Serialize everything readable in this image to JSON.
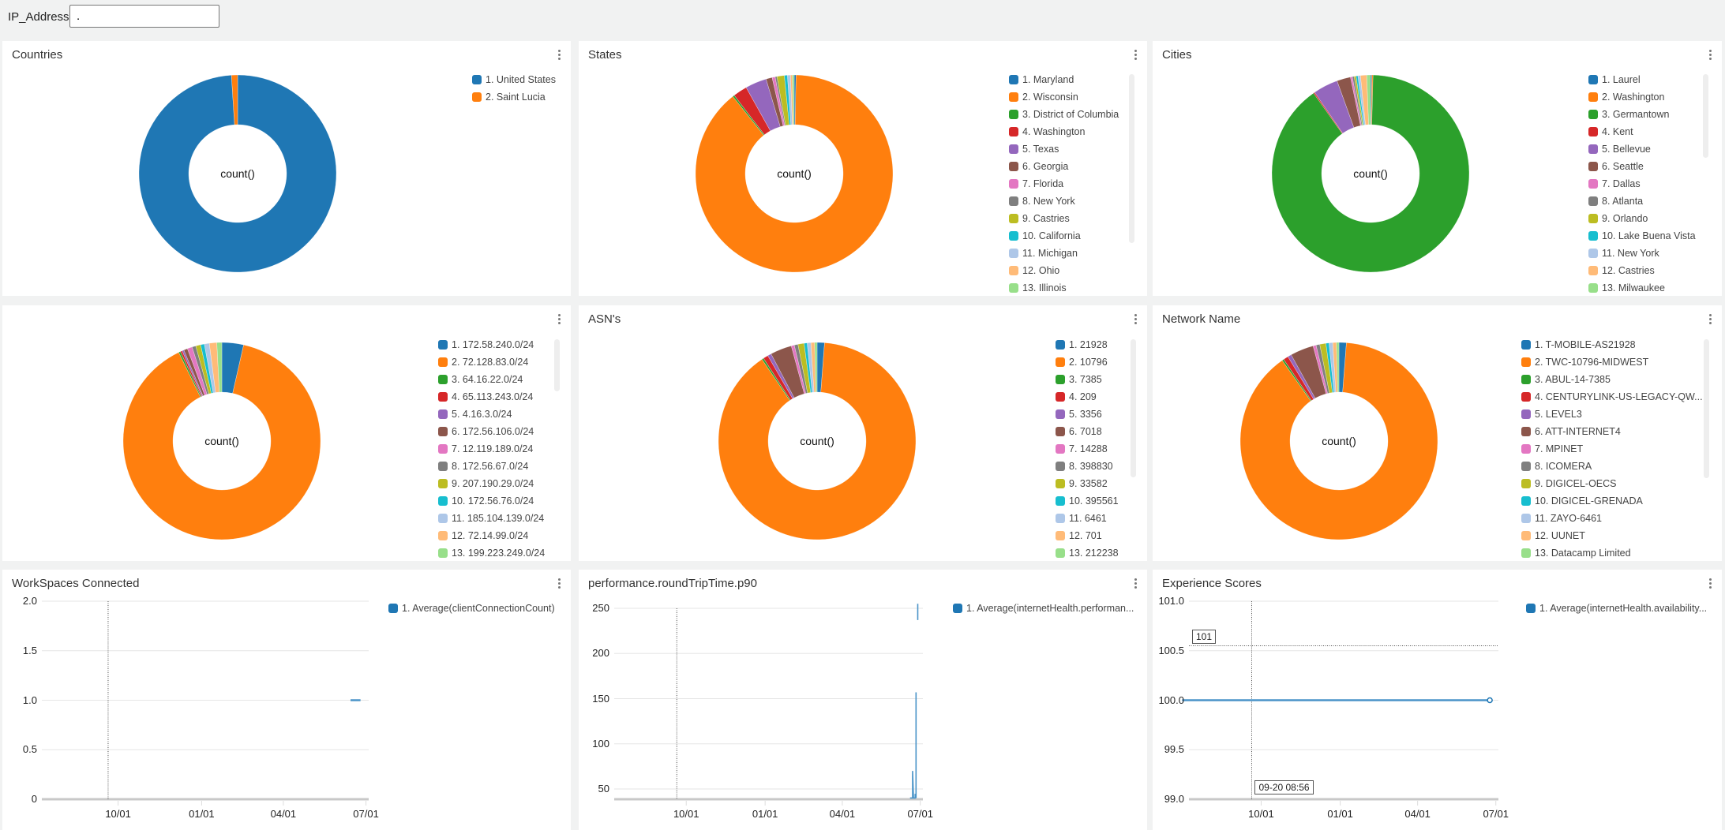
{
  "filter": {
    "label": "IP_Address:",
    "value": "."
  },
  "colors": [
    "#1f77b4",
    "#ff7f0e",
    "#2ca02c",
    "#d62728",
    "#9467bd",
    "#8c564b",
    "#e377c2",
    "#7f7f7f",
    "#bcbd22",
    "#17becf",
    "#aec7e8",
    "#ffbb78",
    "#98df8a"
  ],
  "panels": {
    "countries": {
      "title": "Countries",
      "center_label": "count()"
    },
    "states": {
      "title": "States",
      "center_label": "count()"
    },
    "cities": {
      "title": "Cities",
      "center_label": "count()"
    },
    "subnets": {
      "title": "",
      "center_label": "count()"
    },
    "asns": {
      "title": "ASN's",
      "center_label": "count()"
    },
    "networks": {
      "title": "Network Name",
      "center_label": "count()"
    },
    "workspaces": {
      "title": "WorkSpaces Connected",
      "legend": "1. Average(clientConnectionCount)"
    },
    "rtt": {
      "title": "performance.roundTripTime.p90",
      "legend": "1. Average(internetHealth.performan..."
    },
    "experience": {
      "title": "Experience Scores",
      "legend": "1. Average(internetHealth.availability...",
      "tooltip_y": "101",
      "tooltip_x": "09-20 08:56"
    }
  },
  "chart_data": [
    {
      "id": "countries",
      "type": "pie",
      "donut": true,
      "labels": [
        "1. United States",
        "2. Saint Lucia"
      ],
      "values": [
        99,
        1
      ]
    },
    {
      "id": "states",
      "type": "pie",
      "donut": true,
      "labels": [
        "1. Maryland",
        "2. Wisconsin",
        "3. District of Columbia",
        "4. Washington",
        "5. Texas",
        "6. Georgia",
        "7. Florida",
        "8. New York",
        "9. Castries",
        "10. California",
        "11. Michigan",
        "12. Ohio",
        "13. Illinois"
      ],
      "values": [
        0.3,
        89,
        0.3,
        2.3,
        3.5,
        1,
        0.5,
        0.3,
        1.2,
        0.5,
        0.5,
        0.3,
        0.3
      ]
    },
    {
      "id": "cities",
      "type": "pie",
      "donut": true,
      "labels": [
        "1. Laurel",
        "2. Washington",
        "3. Germantown",
        "4. Kent",
        "5. Bellevue",
        "6. Seattle",
        "7. Dallas",
        "8. Atlanta",
        "9. Orlando",
        "10. Lake Buena Vista",
        "11. New York",
        "12. Castries",
        "13. Milwaukee"
      ],
      "values": [
        0.2,
        0.2,
        88,
        0.2,
        4,
        2.2,
        0.3,
        0.3,
        0.3,
        0.3,
        0.4,
        1,
        0.6
      ]
    },
    {
      "id": "subnets",
      "type": "pie",
      "donut": true,
      "labels": [
        "1. 172.58.240.0/24",
        "2. 72.128.83.0/24",
        "3. 64.16.22.0/24",
        "4. 65.113.243.0/24",
        "5. 4.16.3.0/24",
        "6. 172.56.106.0/24",
        "7. 12.119.189.0/24",
        "8. 172.56.67.0/24",
        "9. 207.190.29.0/24",
        "10. 172.56.76.0/24",
        "11. 185.104.139.0/24",
        "12. 72.14.99.0/24",
        "13. 199.223.249.0/24"
      ],
      "values": [
        3.5,
        88,
        0.3,
        0.3,
        0.3,
        0.6,
        0.8,
        0.6,
        0.8,
        0.6,
        0.8,
        1.2,
        0.8
      ]
    },
    {
      "id": "asns",
      "type": "pie",
      "donut": true,
      "labels": [
        "1. 21928",
        "2. 10796",
        "3. 7385",
        "4. 209",
        "5. 3356",
        "6. 7018",
        "7. 14288",
        "8. 398830",
        "9. 33582",
        "10. 395561",
        "11. 6461",
        "12. 701",
        "13. 212238"
      ],
      "values": [
        1.2,
        89,
        0.3,
        0.8,
        0.6,
        3.5,
        0.5,
        0.6,
        1,
        0.5,
        0.6,
        0.6,
        0.4
      ]
    },
    {
      "id": "networks",
      "type": "pie",
      "donut": true,
      "labels": [
        "1. T-MOBILE-AS21928",
        "2. TWC-10796-MIDWEST",
        "3. ABUL-14-7385",
        "4. CENTURYLINK-US-LEGACY-QW...",
        "5. LEVEL3",
        "6. ATT-INTERNET4",
        "7. MPINET",
        "8. ICOMERA",
        "9. DIGICEL-OECS",
        "10. DIGICEL-GRENADA",
        "11. ZAYO-6461",
        "12. UUNET",
        "13. Datacamp Limited"
      ],
      "values": [
        1.2,
        88.5,
        0.3,
        0.8,
        0.6,
        3.8,
        0.5,
        0.6,
        1,
        0.5,
        0.6,
        0.6,
        0.4
      ]
    },
    {
      "id": "workspaces",
      "type": "line",
      "series": [
        {
          "name": "1. Average(clientConnectionCount)",
          "points": [
            [
              "06-14",
              1.0
            ],
            [
              "06-25",
              1.0
            ]
          ]
        }
      ],
      "xlim": [
        "07-09",
        "07-04"
      ],
      "xticks": [
        "10/01",
        "01/01",
        "04/01",
        "07/01"
      ],
      "ylim": [
        0,
        2
      ],
      "yticks": [
        0,
        0.5,
        1,
        1.5,
        2
      ],
      "ytick_labels": [
        "0",
        "0.5",
        "1.0",
        "1.5",
        "2.0"
      ],
      "grid": true,
      "crosshair_x": "09-20"
    },
    {
      "id": "rtt",
      "type": "line",
      "series": [
        {
          "name": "1. Average(internetHealth.performan...",
          "segments": [
            [
              [
                "06-19",
                40
              ],
              [
                "06-21",
                40
              ],
              [
                "06-22",
                40
              ],
              [
                "06-22",
                70
              ],
              [
                "06-23",
                40
              ],
              [
                "06-25",
                40
              ],
              [
                "06-25",
                44
              ],
              [
                "06-26",
                44
              ],
              [
                "06-26",
                157
              ],
              [
                "06-26",
                40
              ]
            ],
            [
              [
                "06-28",
                255
              ],
              [
                "06-28",
                237
              ]
            ]
          ]
        }
      ],
      "xlim": [
        "07-09",
        "07-04"
      ],
      "xticks": [
        "10/01",
        "01/01",
        "04/01",
        "07/01"
      ],
      "ylim": [
        38,
        255
      ],
      "yticks": [
        50,
        100,
        150,
        200,
        250
      ],
      "ytick_labels": [
        "50",
        "100",
        "150",
        "200",
        "250"
      ],
      "grid": true,
      "crosshair_x": "09-20"
    },
    {
      "id": "experience",
      "type": "line",
      "series": [
        {
          "name": "1. Average(internetHealth.availability...",
          "points": [
            [
              "06-24",
              100.0
            ],
            [
              "07-01",
              100.0
            ]
          ]
        }
      ],
      "xlim": [
        "07-09",
        "07-04"
      ],
      "xticks": [
        "10/01",
        "01/01",
        "04/01",
        "07/01"
      ],
      "ylim": [
        99,
        101
      ],
      "yticks": [
        99,
        99.5,
        100,
        100.5,
        101
      ],
      "ytick_labels": [
        "99.0",
        "99.5",
        "100.0",
        "100.5",
        "101.0"
      ],
      "grid": true,
      "crosshair_x": "09-20",
      "crosshair_y": 100.55
    }
  ]
}
